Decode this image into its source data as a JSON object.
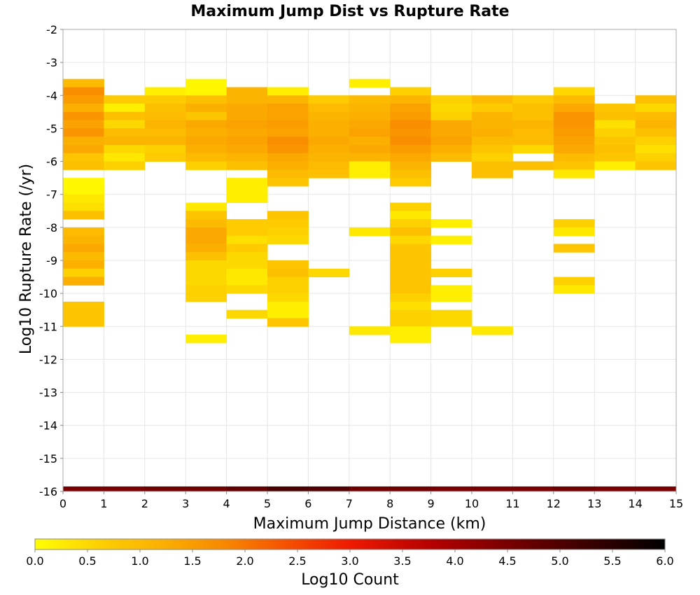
{
  "chart_data": {
    "type": "heatmap",
    "title": "Maximum Jump Dist vs Rupture Rate",
    "xlabel": "Maximum Jump Distance (km)",
    "ylabel": "Log10 Rupture Rate (/yr)",
    "xlim": [
      0,
      15
    ],
    "ylim": [
      -16,
      -2
    ],
    "x_ticks": [
      "0",
      "1",
      "2",
      "3",
      "4",
      "5",
      "6",
      "7",
      "8",
      "9",
      "10",
      "11",
      "12",
      "13",
      "14",
      "15"
    ],
    "y_ticks": [
      "-2",
      "-3",
      "-4",
      "-5",
      "-6",
      "-7",
      "-8",
      "-9",
      "-10",
      "-11",
      "-12",
      "-13",
      "-14",
      "-15",
      "-16"
    ],
    "bin_width_x": 1,
    "bin_height_y": 0.25,
    "grid": true,
    "colorscale": {
      "label": "Log10 Count",
      "min": 0,
      "max": 6,
      "ticks": [
        "0.0",
        "0.5",
        "1.0",
        "1.5",
        "2.0",
        "2.5",
        "3.0",
        "3.5",
        "4.0",
        "4.5",
        "5.0",
        "5.5",
        "6.0"
      ],
      "stops": [
        {
          "v": 0.0,
          "color": "#ffff00"
        },
        {
          "v": 0.6,
          "color": "#fdd000"
        },
        {
          "v": 1.2,
          "color": "#fbb000"
        },
        {
          "v": 1.8,
          "color": "#f88800"
        },
        {
          "v": 2.4,
          "color": "#f55000"
        },
        {
          "v": 3.0,
          "color": "#ee1a00"
        },
        {
          "v": 3.8,
          "color": "#b30000"
        },
        {
          "v": 4.6,
          "color": "#700000"
        },
        {
          "v": 5.4,
          "color": "#300000"
        },
        {
          "v": 6.0,
          "color": "#000000"
        }
      ]
    },
    "bottom_band": {
      "y": -16,
      "values": [
        4.5,
        4.5,
        4.6,
        4.6,
        4.8,
        5.1,
        5.0,
        4.6,
        4.6,
        4.5,
        4.5,
        4.5,
        4.6,
        4.5,
        4.5
      ]
    },
    "cells": [
      {
        "x": 0,
        "y": -3.75,
        "v": 1.0
      },
      {
        "x": 0,
        "y": -4.0,
        "v": 1.7
      },
      {
        "x": 0,
        "y": -4.25,
        "v": 1.5
      },
      {
        "x": 0,
        "y": -4.5,
        "v": 1.2
      },
      {
        "x": 0,
        "y": -4.75,
        "v": 1.6
      },
      {
        "x": 0,
        "y": -5.0,
        "v": 1.4
      },
      {
        "x": 0,
        "y": -5.25,
        "v": 1.6
      },
      {
        "x": 0,
        "y": -5.5,
        "v": 1.2
      },
      {
        "x": 0,
        "y": -5.75,
        "v": 1.3
      },
      {
        "x": 0,
        "y": -6.0,
        "v": 0.8
      },
      {
        "x": 0,
        "y": -6.25,
        "v": 0.9
      },
      {
        "x": 0,
        "y": -6.75,
        "v": 0.1
      },
      {
        "x": 0,
        "y": -7.0,
        "v": 0.1
      },
      {
        "x": 0,
        "y": -7.25,
        "v": 0.3
      },
      {
        "x": 0,
        "y": -7.5,
        "v": 0.4
      },
      {
        "x": 0,
        "y": -7.75,
        "v": 0.9
      },
      {
        "x": 0,
        "y": -8.25,
        "v": 1.0
      },
      {
        "x": 0,
        "y": -8.5,
        "v": 1.1
      },
      {
        "x": 0,
        "y": -8.75,
        "v": 1.3
      },
      {
        "x": 0,
        "y": -9.0,
        "v": 1.0
      },
      {
        "x": 0,
        "y": -9.25,
        "v": 1.2
      },
      {
        "x": 0,
        "y": -9.5,
        "v": 0.6
      },
      {
        "x": 0,
        "y": -9.75,
        "v": 1.2
      },
      {
        "x": 0,
        "y": -10.5,
        "v": 0.8
      },
      {
        "x": 0,
        "y": -10.75,
        "v": 0.8
      },
      {
        "x": 0,
        "y": -11.0,
        "v": 0.8
      },
      {
        "x": 1,
        "y": -4.25,
        "v": 0.7
      },
      {
        "x": 1,
        "y": -4.5,
        "v": 0.2
      },
      {
        "x": 1,
        "y": -4.75,
        "v": 0.9
      },
      {
        "x": 1,
        "y": -5.0,
        "v": 0.5
      },
      {
        "x": 1,
        "y": -5.25,
        "v": 1.0
      },
      {
        "x": 1,
        "y": -5.5,
        "v": 1.1
      },
      {
        "x": 1,
        "y": -5.75,
        "v": 0.5
      },
      {
        "x": 1,
        "y": -6.0,
        "v": 0.3
      },
      {
        "x": 1,
        "y": -6.25,
        "v": 0.6
      },
      {
        "x": 2,
        "y": -4.0,
        "v": 0.2
      },
      {
        "x": 2,
        "y": -4.25,
        "v": 0.7
      },
      {
        "x": 2,
        "y": -4.5,
        "v": 0.9
      },
      {
        "x": 2,
        "y": -4.75,
        "v": 1.0
      },
      {
        "x": 2,
        "y": -5.0,
        "v": 1.1
      },
      {
        "x": 2,
        "y": -5.25,
        "v": 1.0
      },
      {
        "x": 2,
        "y": -5.5,
        "v": 1.1
      },
      {
        "x": 2,
        "y": -5.75,
        "v": 0.6
      },
      {
        "x": 2,
        "y": -6.0,
        "v": 0.7
      },
      {
        "x": 3,
        "y": -3.75,
        "v": 0.1
      },
      {
        "x": 3,
        "y": -4.0,
        "v": 0.1
      },
      {
        "x": 3,
        "y": -4.25,
        "v": 0.9
      },
      {
        "x": 3,
        "y": -4.5,
        "v": 1.2
      },
      {
        "x": 3,
        "y": -4.75,
        "v": 0.8
      },
      {
        "x": 3,
        "y": -5.0,
        "v": 1.3
      },
      {
        "x": 3,
        "y": -5.25,
        "v": 1.2
      },
      {
        "x": 3,
        "y": -5.5,
        "v": 1.3
      },
      {
        "x": 3,
        "y": -5.75,
        "v": 1.2
      },
      {
        "x": 3,
        "y": -6.0,
        "v": 1.0
      },
      {
        "x": 3,
        "y": -6.25,
        "v": 0.6
      },
      {
        "x": 3,
        "y": -7.5,
        "v": 0.3
      },
      {
        "x": 3,
        "y": -7.75,
        "v": 0.8
      },
      {
        "x": 3,
        "y": -8.0,
        "v": 1.0
      },
      {
        "x": 3,
        "y": -8.25,
        "v": 1.3
      },
      {
        "x": 3,
        "y": -8.5,
        "v": 1.3
      },
      {
        "x": 3,
        "y": -8.75,
        "v": 1.2
      },
      {
        "x": 3,
        "y": -9.0,
        "v": 0.9
      },
      {
        "x": 3,
        "y": -9.25,
        "v": 0.5
      },
      {
        "x": 3,
        "y": -9.5,
        "v": 0.5
      },
      {
        "x": 3,
        "y": -9.75,
        "v": 0.5
      },
      {
        "x": 3,
        "y": -10.0,
        "v": 0.6
      },
      {
        "x": 3,
        "y": -10.25,
        "v": 0.6
      },
      {
        "x": 3,
        "y": -11.5,
        "v": 0.2
      },
      {
        "x": 4,
        "y": -4.0,
        "v": 1.1
      },
      {
        "x": 4,
        "y": -4.25,
        "v": 1.1
      },
      {
        "x": 4,
        "y": -4.5,
        "v": 1.3
      },
      {
        "x": 4,
        "y": -4.75,
        "v": 1.3
      },
      {
        "x": 4,
        "y": -5.0,
        "v": 1.4
      },
      {
        "x": 4,
        "y": -5.25,
        "v": 1.3
      },
      {
        "x": 4,
        "y": -5.5,
        "v": 1.4
      },
      {
        "x": 4,
        "y": -5.75,
        "v": 1.3
      },
      {
        "x": 4,
        "y": -6.0,
        "v": 1.1
      },
      {
        "x": 4,
        "y": -6.25,
        "v": 0.9
      },
      {
        "x": 4,
        "y": -6.75,
        "v": 0.2
      },
      {
        "x": 4,
        "y": -7.0,
        "v": 0.2
      },
      {
        "x": 4,
        "y": -7.25,
        "v": 0.2
      },
      {
        "x": 4,
        "y": -8.0,
        "v": 0.7
      },
      {
        "x": 4,
        "y": -8.25,
        "v": 0.7
      },
      {
        "x": 4,
        "y": -8.5,
        "v": 0.4
      },
      {
        "x": 4,
        "y": -8.75,
        "v": 0.7
      },
      {
        "x": 4,
        "y": -9.0,
        "v": 0.5
      },
      {
        "x": 4,
        "y": -9.25,
        "v": 0.5
      },
      {
        "x": 4,
        "y": -9.5,
        "v": 0.3
      },
      {
        "x": 4,
        "y": -9.75,
        "v": 0.3
      },
      {
        "x": 4,
        "y": -10.0,
        "v": 0.5
      },
      {
        "x": 4,
        "y": -10.75,
        "v": 0.5
      },
      {
        "x": 5,
        "y": -4.0,
        "v": 0.2
      },
      {
        "x": 5,
        "y": -4.25,
        "v": 1.1
      },
      {
        "x": 5,
        "y": -4.5,
        "v": 1.4
      },
      {
        "x": 5,
        "y": -4.75,
        "v": 1.4
      },
      {
        "x": 5,
        "y": -5.0,
        "v": 1.5
      },
      {
        "x": 5,
        "y": -5.25,
        "v": 1.4
      },
      {
        "x": 5,
        "y": -5.5,
        "v": 1.7
      },
      {
        "x": 5,
        "y": -5.75,
        "v": 1.6
      },
      {
        "x": 5,
        "y": -6.0,
        "v": 1.3
      },
      {
        "x": 5,
        "y": -6.25,
        "v": 1.2
      },
      {
        "x": 5,
        "y": -6.5,
        "v": 1.0
      },
      {
        "x": 5,
        "y": -6.75,
        "v": 0.8
      },
      {
        "x": 5,
        "y": -7.75,
        "v": 0.8
      },
      {
        "x": 5,
        "y": -8.0,
        "v": 0.7
      },
      {
        "x": 5,
        "y": -8.25,
        "v": 0.6
      },
      {
        "x": 5,
        "y": -8.5,
        "v": 0.5
      },
      {
        "x": 5,
        "y": -9.25,
        "v": 0.8
      },
      {
        "x": 5,
        "y": -9.5,
        "v": 0.9
      },
      {
        "x": 5,
        "y": -9.75,
        "v": 0.6
      },
      {
        "x": 5,
        "y": -10.0,
        "v": 0.6
      },
      {
        "x": 5,
        "y": -10.25,
        "v": 0.5
      },
      {
        "x": 5,
        "y": -10.5,
        "v": 0.2
      },
      {
        "x": 5,
        "y": -10.75,
        "v": 0.2
      },
      {
        "x": 5,
        "y": -11.0,
        "v": 0.8
      },
      {
        "x": 6,
        "y": -4.25,
        "v": 0.7
      },
      {
        "x": 6,
        "y": -4.5,
        "v": 1.0
      },
      {
        "x": 6,
        "y": -4.75,
        "v": 1.1
      },
      {
        "x": 6,
        "y": -5.0,
        "v": 1.2
      },
      {
        "x": 6,
        "y": -5.25,
        "v": 1.2
      },
      {
        "x": 6,
        "y": -5.5,
        "v": 1.3
      },
      {
        "x": 6,
        "y": -5.75,
        "v": 1.2
      },
      {
        "x": 6,
        "y": -6.0,
        "v": 1.1
      },
      {
        "x": 6,
        "y": -6.25,
        "v": 1.0
      },
      {
        "x": 6,
        "y": -6.5,
        "v": 0.9
      },
      {
        "x": 6,
        "y": -9.5,
        "v": 0.5
      },
      {
        "x": 7,
        "y": -3.75,
        "v": 0.2
      },
      {
        "x": 7,
        "y": -4.25,
        "v": 1.0
      },
      {
        "x": 7,
        "y": -4.5,
        "v": 1.1
      },
      {
        "x": 7,
        "y": -4.75,
        "v": 1.2
      },
      {
        "x": 7,
        "y": -5.0,
        "v": 1.3
      },
      {
        "x": 7,
        "y": -5.25,
        "v": 1.4
      },
      {
        "x": 7,
        "y": -5.5,
        "v": 1.2
      },
      {
        "x": 7,
        "y": -5.75,
        "v": 1.3
      },
      {
        "x": 7,
        "y": -6.0,
        "v": 1.1
      },
      {
        "x": 7,
        "y": -6.25,
        "v": 0.2
      },
      {
        "x": 7,
        "y": -6.5,
        "v": 0.2
      },
      {
        "x": 7,
        "y": -8.25,
        "v": 0.3
      },
      {
        "x": 7,
        "y": -11.25,
        "v": 0.3
      },
      {
        "x": 8,
        "y": -4.0,
        "v": 0.6
      },
      {
        "x": 8,
        "y": -4.25,
        "v": 1.1
      },
      {
        "x": 8,
        "y": -4.5,
        "v": 1.4
      },
      {
        "x": 8,
        "y": -4.75,
        "v": 1.5
      },
      {
        "x": 8,
        "y": -5.0,
        "v": 1.7
      },
      {
        "x": 8,
        "y": -5.25,
        "v": 1.6
      },
      {
        "x": 8,
        "y": -5.5,
        "v": 1.7
      },
      {
        "x": 8,
        "y": -5.75,
        "v": 1.5
      },
      {
        "x": 8,
        "y": -6.0,
        "v": 1.3
      },
      {
        "x": 8,
        "y": -6.25,
        "v": 1.1
      },
      {
        "x": 8,
        "y": -6.5,
        "v": 0.9
      },
      {
        "x": 8,
        "y": -6.75,
        "v": 0.7
      },
      {
        "x": 8,
        "y": -7.5,
        "v": 0.6
      },
      {
        "x": 8,
        "y": -7.75,
        "v": 0.3
      },
      {
        "x": 8,
        "y": -8.0,
        "v": 0.6
      },
      {
        "x": 8,
        "y": -8.25,
        "v": 0.9
      },
      {
        "x": 8,
        "y": -8.5,
        "v": 0.5
      },
      {
        "x": 8,
        "y": -8.75,
        "v": 0.8
      },
      {
        "x": 8,
        "y": -9.0,
        "v": 0.8
      },
      {
        "x": 8,
        "y": -9.25,
        "v": 0.8
      },
      {
        "x": 8,
        "y": -9.5,
        "v": 0.8
      },
      {
        "x": 8,
        "y": -9.75,
        "v": 0.8
      },
      {
        "x": 8,
        "y": -10.0,
        "v": 0.8
      },
      {
        "x": 8,
        "y": -10.25,
        "v": 0.6
      },
      {
        "x": 8,
        "y": -10.5,
        "v": 0.4
      },
      {
        "x": 8,
        "y": -10.75,
        "v": 0.6
      },
      {
        "x": 8,
        "y": -11.0,
        "v": 0.6
      },
      {
        "x": 8,
        "y": -11.25,
        "v": 0.2
      },
      {
        "x": 8,
        "y": -11.5,
        "v": 0.2
      },
      {
        "x": 9,
        "y": -4.25,
        "v": 0.6
      },
      {
        "x": 9,
        "y": -4.5,
        "v": 0.5
      },
      {
        "x": 9,
        "y": -4.75,
        "v": 0.6
      },
      {
        "x": 9,
        "y": -5.0,
        "v": 1.3
      },
      {
        "x": 9,
        "y": -5.25,
        "v": 1.3
      },
      {
        "x": 9,
        "y": -5.5,
        "v": 1.4
      },
      {
        "x": 9,
        "y": -5.75,
        "v": 1.2
      },
      {
        "x": 9,
        "y": -6.0,
        "v": 1.0
      },
      {
        "x": 9,
        "y": -8.0,
        "v": 0.2
      },
      {
        "x": 9,
        "y": -8.5,
        "v": 0.2
      },
      {
        "x": 9,
        "y": -9.5,
        "v": 0.6
      },
      {
        "x": 9,
        "y": -10.0,
        "v": 0.2
      },
      {
        "x": 9,
        "y": -10.25,
        "v": 0.2
      },
      {
        "x": 9,
        "y": -10.75,
        "v": 0.5
      },
      {
        "x": 9,
        "y": -11.0,
        "v": 0.5
      },
      {
        "x": 10,
        "y": -4.25,
        "v": 1.0
      },
      {
        "x": 10,
        "y": -4.5,
        "v": 0.7
      },
      {
        "x": 10,
        "y": -4.75,
        "v": 1.1
      },
      {
        "x": 10,
        "y": -5.0,
        "v": 1.1
      },
      {
        "x": 10,
        "y": -5.25,
        "v": 1.2
      },
      {
        "x": 10,
        "y": -5.5,
        "v": 1.0
      },
      {
        "x": 10,
        "y": -5.75,
        "v": 0.8
      },
      {
        "x": 10,
        "y": -6.0,
        "v": 0.6
      },
      {
        "x": 10,
        "y": -6.25,
        "v": 0.9
      },
      {
        "x": 10,
        "y": -6.5,
        "v": 0.9
      },
      {
        "x": 10,
        "y": -11.25,
        "v": 0.3
      },
      {
        "x": 11,
        "y": -4.25,
        "v": 0.7
      },
      {
        "x": 11,
        "y": -4.5,
        "v": 0.9
      },
      {
        "x": 11,
        "y": -4.75,
        "v": 0.9
      },
      {
        "x": 11,
        "y": -5.0,
        "v": 1.1
      },
      {
        "x": 11,
        "y": -5.25,
        "v": 1.0
      },
      {
        "x": 11,
        "y": -5.5,
        "v": 1.0
      },
      {
        "x": 11,
        "y": -5.75,
        "v": 0.5
      },
      {
        "x": 11,
        "y": -6.25,
        "v": 0.9
      },
      {
        "x": 12,
        "y": -4.0,
        "v": 0.5
      },
      {
        "x": 12,
        "y": -4.25,
        "v": 1.0
      },
      {
        "x": 12,
        "y": -4.5,
        "v": 1.3
      },
      {
        "x": 12,
        "y": -4.75,
        "v": 1.6
      },
      {
        "x": 12,
        "y": -5.0,
        "v": 1.6
      },
      {
        "x": 12,
        "y": -5.25,
        "v": 1.5
      },
      {
        "x": 12,
        "y": -5.5,
        "v": 1.4
      },
      {
        "x": 12,
        "y": -5.75,
        "v": 1.3
      },
      {
        "x": 12,
        "y": -6.0,
        "v": 1.0
      },
      {
        "x": 12,
        "y": -6.25,
        "v": 0.8
      },
      {
        "x": 12,
        "y": -6.5,
        "v": 0.3
      },
      {
        "x": 12,
        "y": -8.0,
        "v": 0.6
      },
      {
        "x": 12,
        "y": -8.25,
        "v": 0.3
      },
      {
        "x": 12,
        "y": -8.75,
        "v": 0.8
      },
      {
        "x": 12,
        "y": -9.75,
        "v": 0.6
      },
      {
        "x": 12,
        "y": -10.0,
        "v": 0.3
      },
      {
        "x": 13,
        "y": -4.5,
        "v": 0.8
      },
      {
        "x": 13,
        "y": -4.75,
        "v": 0.9
      },
      {
        "x": 13,
        "y": -5.0,
        "v": 0.4
      },
      {
        "x": 13,
        "y": -5.25,
        "v": 0.6
      },
      {
        "x": 13,
        "y": -5.5,
        "v": 0.8
      },
      {
        "x": 13,
        "y": -5.75,
        "v": 0.9
      },
      {
        "x": 13,
        "y": -6.0,
        "v": 0.8
      },
      {
        "x": 13,
        "y": -6.25,
        "v": 0.2
      },
      {
        "x": 14,
        "y": -4.25,
        "v": 0.9
      },
      {
        "x": 14,
        "y": -4.5,
        "v": 0.5
      },
      {
        "x": 14,
        "y": -4.75,
        "v": 1.0
      },
      {
        "x": 14,
        "y": -5.0,
        "v": 1.1
      },
      {
        "x": 14,
        "y": -5.25,
        "v": 0.9
      },
      {
        "x": 14,
        "y": -5.5,
        "v": 0.6
      },
      {
        "x": 14,
        "y": -5.75,
        "v": 0.4
      },
      {
        "x": 14,
        "y": -6.0,
        "v": 0.6
      },
      {
        "x": 14,
        "y": -6.25,
        "v": 0.8
      }
    ]
  }
}
